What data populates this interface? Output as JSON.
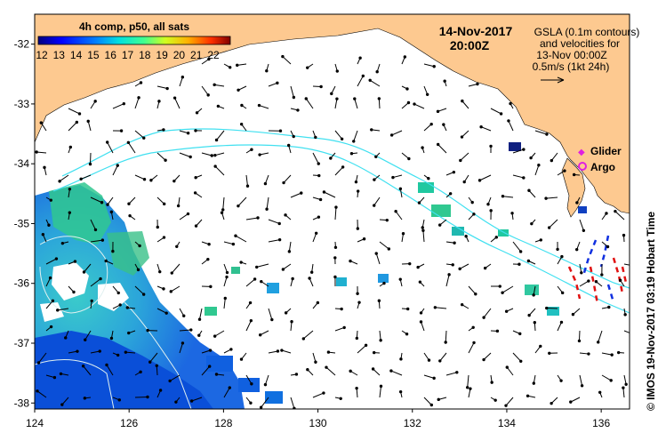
{
  "map": {
    "date": "14-Nov-2017",
    "time": "20:00Z",
    "colorbar": {
      "title": "4h comp, p50, all sats",
      "ticks": [
        "12",
        "13",
        "14",
        "15",
        "16",
        "17",
        "18",
        "19",
        "20",
        "21",
        "22"
      ],
      "range": [
        12,
        22
      ]
    },
    "legend": {
      "line1": "GSLA (0.1m contours)",
      "line2": "and velocities for",
      "line3": "13-Nov 00:00Z",
      "line4": "0.5m/s (1kt 24h)"
    },
    "markers": {
      "glider_label": "Glider",
      "argo_label": "Argo",
      "glider_color": "#e020e0",
      "argo_color": "#e020e0"
    },
    "credit": "© IMOS 19-Nov-2017 03:19 Hobart Time",
    "x_ticks": [
      "124",
      "126",
      "128",
      "130",
      "132",
      "134",
      "136"
    ],
    "y_ticks": [
      "-32",
      "-33",
      "-34",
      "-35",
      "-36",
      "-37",
      "-38"
    ],
    "lon_range": [
      124,
      136.6
    ],
    "lat_range": [
      -38.1,
      -31.5
    ],
    "colors": {
      "land": "#fdc990",
      "contour": "#40e0f0",
      "track_red": "#e01010",
      "track_blue": "#1030e0"
    }
  }
}
